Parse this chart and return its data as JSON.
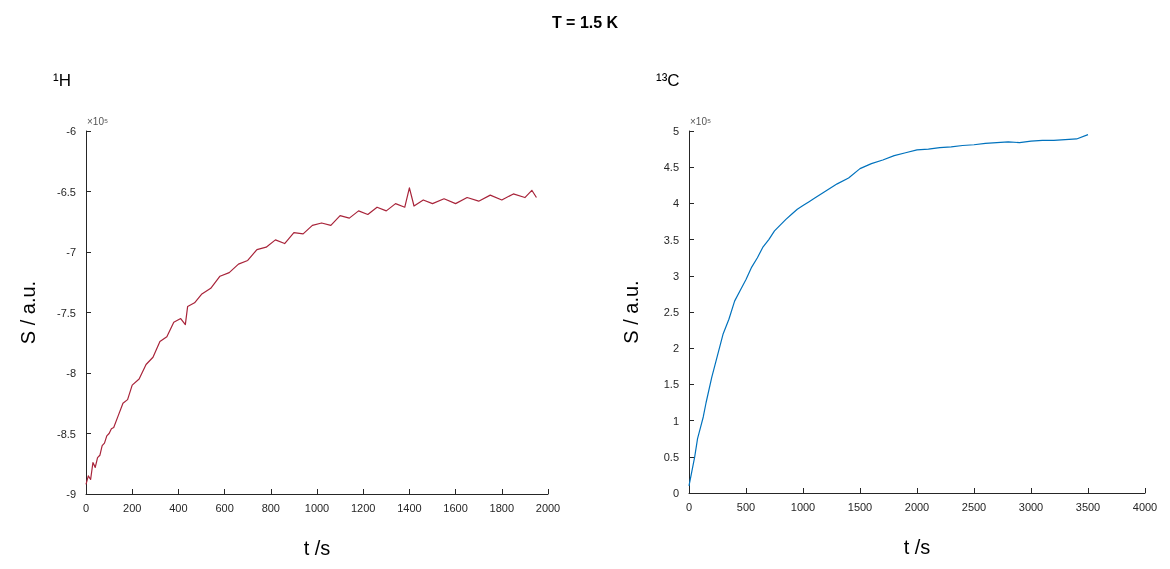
{
  "chart_data": [
    {
      "type": "line",
      "title": "T = 1.5 K",
      "subtitle": "¹H",
      "xlabel": "t /s",
      "ylabel": "S / a.u.",
      "annotations": [
        "×10⁵"
      ],
      "grid": false,
      "marker": "none",
      "xlim": [
        0,
        2000
      ],
      "xticks": [
        0,
        200,
        400,
        600,
        800,
        1000,
        1200,
        1400,
        1600,
        1800,
        2000
      ],
      "ylim": [
        -9,
        -6
      ],
      "yticks": [
        -9,
        -8.5,
        -8,
        -7.5,
        -7,
        -6.5,
        -6
      ],
      "series": [
        {
          "color": "#a8243a",
          "x": [
            0,
            10,
            20,
            30,
            40,
            50,
            60,
            70,
            80,
            90,
            100,
            110,
            120,
            140,
            160,
            180,
            200,
            230,
            260,
            290,
            320,
            350,
            380,
            410,
            430,
            440,
            470,
            500,
            540,
            580,
            620,
            660,
            700,
            740,
            780,
            820,
            860,
            900,
            940,
            980,
            1020,
            1060,
            1100,
            1140,
            1180,
            1220,
            1260,
            1300,
            1340,
            1380,
            1400,
            1420,
            1460,
            1500,
            1550,
            1600,
            1650,
            1700,
            1750,
            1800,
            1850,
            1900,
            1930,
            1950
          ],
          "values": [
            -8.92,
            -8.85,
            -8.88,
            -8.74,
            -8.78,
            -8.7,
            -8.68,
            -8.6,
            -8.58,
            -8.52,
            -8.5,
            -8.46,
            -8.45,
            -8.35,
            -8.25,
            -8.22,
            -8.1,
            -8.05,
            -7.93,
            -7.87,
            -7.74,
            -7.7,
            -7.58,
            -7.55,
            -7.6,
            -7.45,
            -7.42,
            -7.35,
            -7.3,
            -7.2,
            -7.17,
            -7.1,
            -7.07,
            -6.98,
            -6.96,
            -6.9,
            -6.93,
            -6.84,
            -6.85,
            -6.78,
            -6.76,
            -6.78,
            -6.7,
            -6.72,
            -6.66,
            -6.69,
            -6.63,
            -6.66,
            -6.6,
            -6.63,
            -6.47,
            -6.62,
            -6.57,
            -6.6,
            -6.56,
            -6.6,
            -6.55,
            -6.58,
            -6.53,
            -6.57,
            -6.52,
            -6.55,
            -6.49,
            -6.55
          ]
        }
      ]
    },
    {
      "type": "line",
      "subtitle": "¹³C",
      "xlabel": "t /s",
      "ylabel": "S / a.u.",
      "annotations": [
        "×10⁵"
      ],
      "grid": false,
      "marker": "none",
      "xlim": [
        0,
        4000
      ],
      "xticks": [
        0,
        500,
        1000,
        1500,
        2000,
        2500,
        3000,
        3500,
        4000
      ],
      "ylim": [
        0,
        5
      ],
      "yticks": [
        0,
        0.5,
        1,
        1.5,
        2,
        2.5,
        3,
        3.5,
        4,
        4.5,
        5
      ],
      "series": [
        {
          "color": "#0072bd",
          "x": [
            0,
            25,
            50,
            75,
            100,
            125,
            150,
            200,
            250,
            300,
            350,
            400,
            450,
            500,
            550,
            600,
            650,
            700,
            750,
            800,
            850,
            900,
            950,
            1000,
            1050,
            1100,
            1200,
            1300,
            1400,
            1500,
            1600,
            1700,
            1800,
            1900,
            2000,
            2100,
            2200,
            2300,
            2400,
            2500,
            2600,
            2700,
            2800,
            2900,
            3000,
            3100,
            3200,
            3300,
            3400,
            3500
          ],
          "values": [
            0.1,
            0.3,
            0.5,
            0.75,
            0.9,
            1.05,
            1.25,
            1.6,
            1.9,
            2.2,
            2.4,
            2.65,
            2.8,
            2.95,
            3.12,
            3.25,
            3.4,
            3.5,
            3.62,
            3.7,
            3.78,
            3.85,
            3.92,
            3.97,
            4.02,
            4.07,
            4.17,
            4.27,
            4.35,
            4.48,
            4.55,
            4.6,
            4.66,
            4.7,
            4.74,
            4.75,
            4.77,
            4.78,
            4.8,
            4.81,
            4.83,
            4.84,
            4.85,
            4.84,
            4.86,
            4.87,
            4.87,
            4.88,
            4.89,
            4.95
          ]
        }
      ]
    }
  ]
}
